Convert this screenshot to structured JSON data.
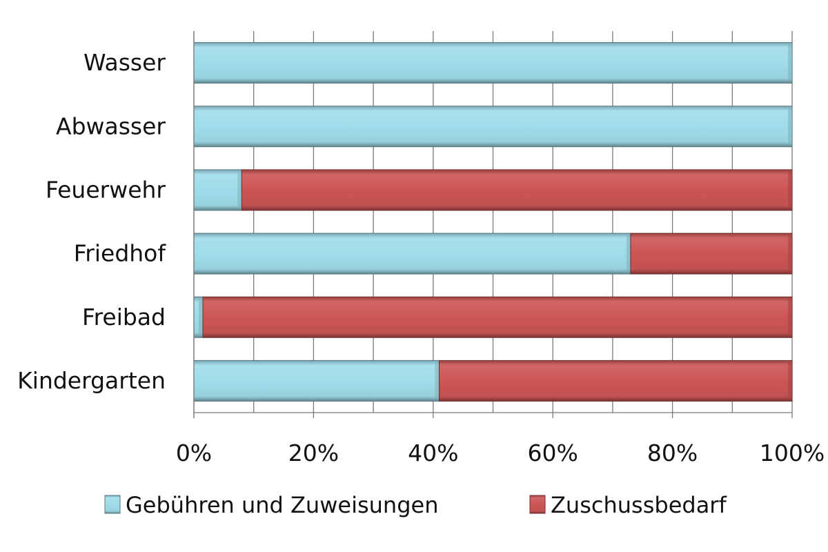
{
  "chart_data": {
    "type": "bar",
    "orientation": "horizontal",
    "stacked": true,
    "percent_stacked": true,
    "categories": [
      "Wasser",
      "Abwasser",
      "Feuerwehr",
      "Friedhof",
      "Freibad",
      "Kindergarten"
    ],
    "series": [
      {
        "name": "Gebühren und Zuweisungen",
        "color": "#9fdcea",
        "values": [
          100,
          100,
          8,
          73,
          1.5,
          41
        ]
      },
      {
        "name": "Zuschussbedarf",
        "color": "#cc5555",
        "values": [
          0,
          0,
          92,
          27,
          98.5,
          59
        ]
      }
    ],
    "x_ticks": [
      "0%",
      "20%",
      "40%",
      "60%",
      "80%",
      "100%"
    ],
    "xlim": [
      0,
      100
    ],
    "grid": true,
    "legend_position": "bottom"
  }
}
